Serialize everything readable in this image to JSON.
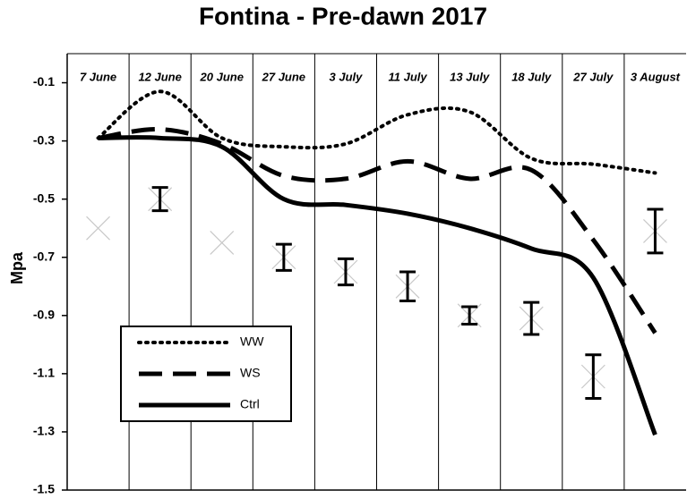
{
  "chart_data": {
    "type": "line",
    "title": "Fontina - Pre-dawn 2017",
    "y_label": "Mpa",
    "categories": [
      "7 June",
      "12 June",
      "20 June",
      "27 June",
      "3 July",
      "11 July",
      "13 July",
      "18 July",
      "27 July",
      "3 August"
    ],
    "series": [
      {
        "name": "WW",
        "color": "#000000",
        "dash": "dotted",
        "values": [
          -0.29,
          -0.13,
          -0.29,
          -0.32,
          -0.31,
          -0.21,
          -0.2,
          -0.36,
          -0.38,
          -0.41
        ]
      },
      {
        "name": "WS",
        "color": "#000000",
        "dash": "dashed",
        "values": [
          -0.29,
          -0.26,
          -0.31,
          -0.42,
          -0.43,
          -0.37,
          -0.43,
          -0.4,
          -0.64,
          -0.96
        ]
      },
      {
        "name": "Ctrl",
        "color": "#000000",
        "dash": "solid",
        "values": [
          -0.29,
          -0.29,
          -0.32,
          -0.5,
          -0.52,
          -0.55,
          -0.6,
          -0.67,
          -0.77,
          -1.31
        ]
      }
    ],
    "markers": {
      "color": "#c8c8c8",
      "values": [
        -0.6,
        -0.5,
        -0.65,
        -0.7,
        -0.75,
        -0.8,
        -0.9,
        -0.91,
        -1.11,
        -0.61
      ],
      "errors": [
        null,
        0.04,
        null,
        0.045,
        0.045,
        0.05,
        0.03,
        0.055,
        0.075,
        0.075
      ]
    },
    "ylim": [
      -1.5,
      0
    ],
    "yticks": [
      -0.1,
      -0.3,
      -0.5,
      -0.7,
      -0.9,
      -1.1,
      -1.3,
      -1.5
    ],
    "grid": "vertical",
    "legend": "lower left"
  }
}
